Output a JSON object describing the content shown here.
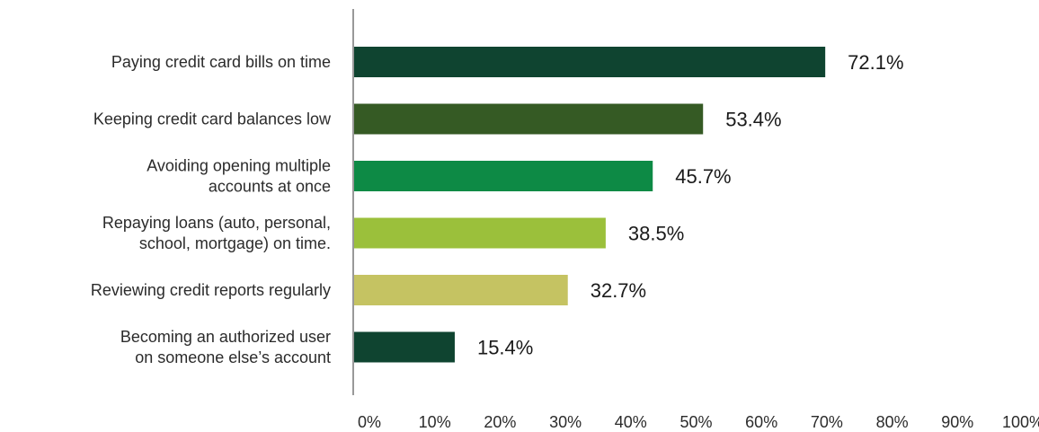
{
  "chart_data": {
    "type": "bar",
    "orientation": "horizontal",
    "title": "",
    "xlabel": "",
    "ylabel": "",
    "categories": [
      [
        "Paying credit card bills on time"
      ],
      [
        "Keeping credit card balances low"
      ],
      [
        "Avoiding opening multiple",
        "accounts at once"
      ],
      [
        "Repaying loans (auto, personal,",
        "school, mortgage) on time."
      ],
      [
        "Reviewing credit reports regularly"
      ],
      [
        "Becoming an authorized user",
        "on someone else’s account"
      ]
    ],
    "values": [
      72.1,
      53.4,
      45.7,
      38.5,
      32.7,
      15.4
    ],
    "value_labels": [
      "72.1%",
      "53.4%",
      "45.7%",
      "38.5%",
      "32.7%",
      "15.4%"
    ],
    "bar_colors": [
      "#0f4430",
      "#355a24",
      "#0d8a45",
      "#9bc03b",
      "#c5c362",
      "#0f4430"
    ],
    "xlim": [
      0,
      100
    ],
    "ticks": [
      0,
      10,
      20,
      30,
      40,
      50,
      60,
      70,
      80,
      90,
      100
    ],
    "tick_labels": [
      "0%",
      "10%",
      "20%",
      "30%",
      "40%",
      "50%",
      "60%",
      "70%",
      "80%",
      "90%",
      "100%"
    ],
    "grid": false,
    "legend": "none"
  }
}
